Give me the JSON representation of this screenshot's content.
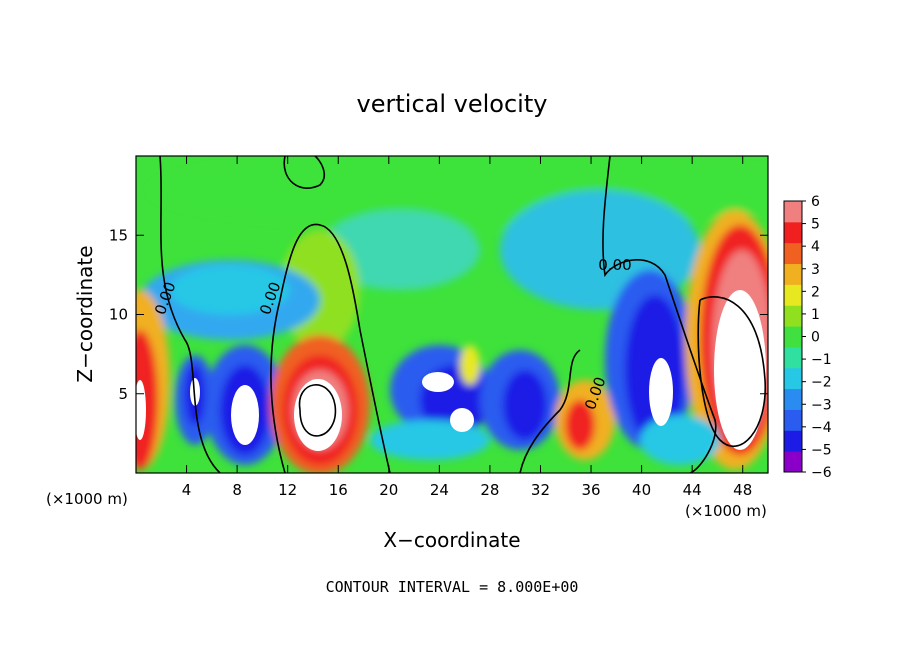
{
  "chart_data": {
    "type": "heatmap",
    "title": "vertical velocity",
    "xlabel": "X−coordinate",
    "ylabel": "Z−coordinate",
    "x_unit_left": "(×1000 m)",
    "x_unit_right": "(×1000 m)",
    "xlim": [
      0,
      50
    ],
    "ylim": [
      0,
      20
    ],
    "xticks": [
      4,
      8,
      12,
      16,
      20,
      24,
      28,
      32,
      36,
      40,
      44,
      48
    ],
    "yticks": [
      5,
      10,
      15
    ],
    "colorbar": {
      "range": [
        -6,
        6
      ],
      "ticks": [
        6,
        5,
        4,
        3,
        2,
        1,
        0,
        -1,
        -2,
        -3,
        -4,
        -5,
        -6
      ],
      "tick_labels": [
        "6",
        "5",
        "4",
        "3",
        "2",
        "1",
        "0",
        "−1",
        "−2",
        "−3",
        "−4",
        "−5",
        "−6"
      ],
      "colors": [
        "#8b00c8",
        "#1c1ce6",
        "#2a5cf0",
        "#2a8cf0",
        "#26c8e6",
        "#30e0a0",
        "#40e040",
        "#90e020",
        "#e8e820",
        "#f0b020",
        "#f06020",
        "#f02020",
        "#f08080"
      ]
    },
    "contour_labels": [
      "0.00",
      "0.00",
      "0.00",
      "0.00"
    ],
    "contour_interval_text": "CONTOUR INTERVAL = 8.000E+00"
  }
}
